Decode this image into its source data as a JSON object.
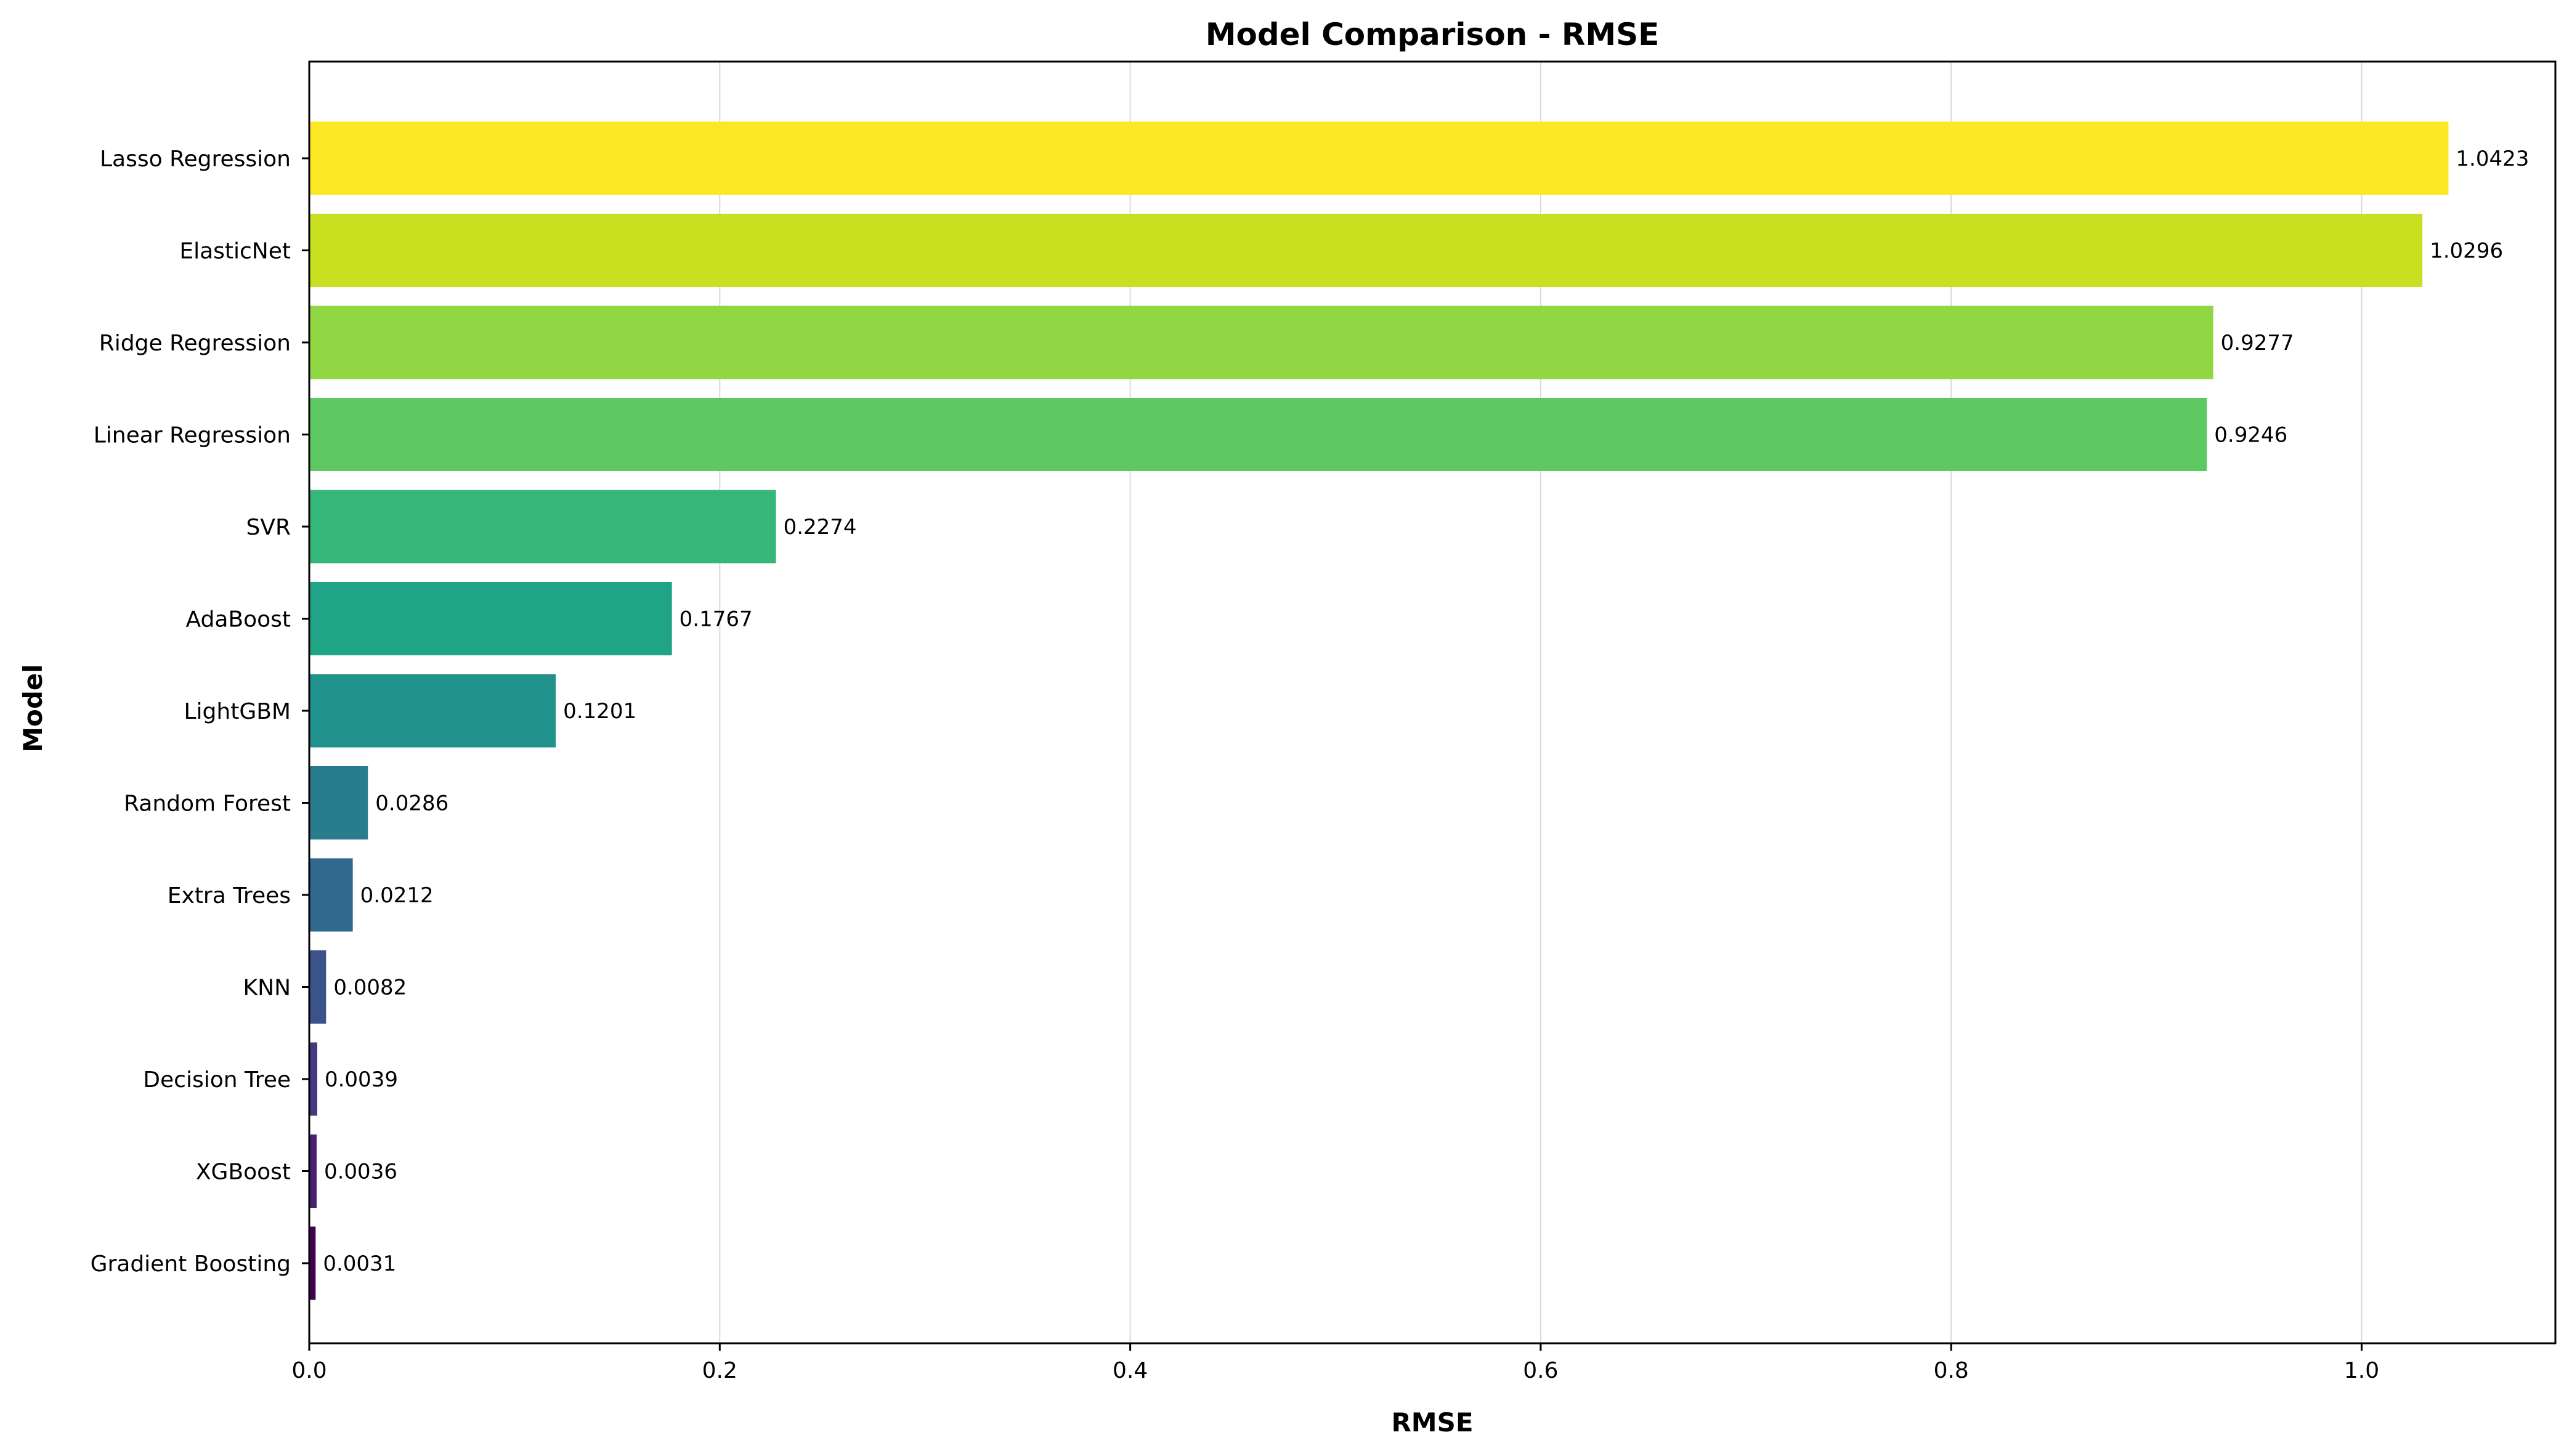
{
  "chart_data": {
    "type": "bar",
    "orientation": "horizontal",
    "title": "Model Comparison - RMSE",
    "xlabel": "RMSE",
    "ylabel": "Model",
    "xlim": [
      0,
      1.0944
    ],
    "xticks": [
      0.0,
      0.2,
      0.4,
      0.6,
      0.8,
      1.0
    ],
    "xtick_labels": [
      "0.0",
      "0.2",
      "0.4",
      "0.6",
      "0.8",
      "1.0"
    ],
    "grid": "x",
    "colormap": "viridis",
    "categories": [
      "Lasso Regression",
      "ElasticNet",
      "Ridge Regression",
      "Linear Regression",
      "SVR",
      "AdaBoost",
      "LightGBM",
      "Random Forest",
      "Extra Trees",
      "KNN",
      "Decision Tree",
      "XGBoost",
      "Gradient Boosting"
    ],
    "values": [
      1.0423,
      1.0296,
      0.9277,
      0.9246,
      0.2274,
      0.1767,
      0.1201,
      0.0286,
      0.0212,
      0.0082,
      0.0039,
      0.0036,
      0.0031
    ],
    "value_labels": [
      "1.0423",
      "1.0296",
      "0.9277",
      "0.9246",
      "0.2274",
      "0.1767",
      "0.1201",
      "0.0286",
      "0.0212",
      "0.0082",
      "0.0039",
      "0.0036",
      "0.0031"
    ],
    "colors": [
      "#fde725",
      "#c8e020",
      "#90d743",
      "#5ec962",
      "#35b779",
      "#20a486",
      "#21918c",
      "#287c8e",
      "#31688e",
      "#3b528b",
      "#443983",
      "#482173",
      "#440154"
    ]
  }
}
